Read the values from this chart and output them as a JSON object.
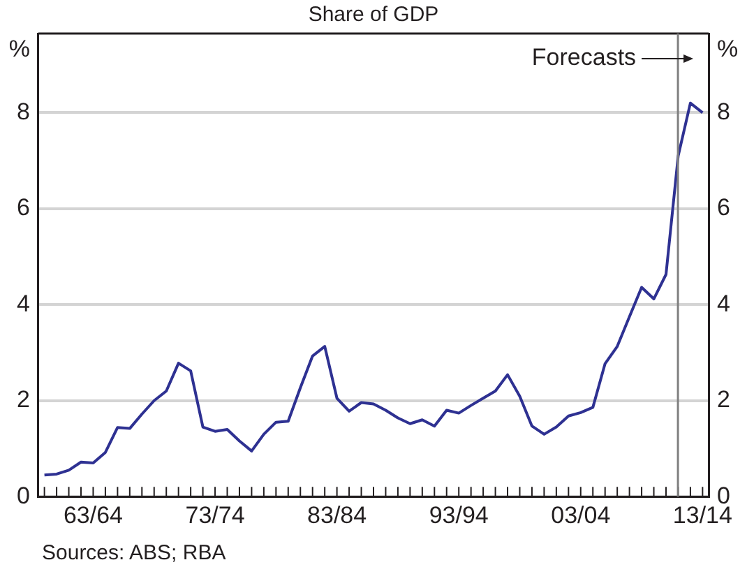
{
  "chart_data": {
    "type": "line",
    "title": "Share of GDP",
    "categories": [
      null,
      null,
      null,
      null,
      "63/64",
      null,
      null,
      null,
      null,
      null,
      null,
      null,
      null,
      null,
      "73/74",
      null,
      null,
      null,
      null,
      null,
      null,
      null,
      null,
      null,
      "83/84",
      null,
      null,
      null,
      null,
      null,
      null,
      null,
      null,
      null,
      "93/94",
      null,
      null,
      null,
      null,
      null,
      null,
      null,
      null,
      null,
      "03/04",
      null,
      null,
      null,
      null,
      null,
      null,
      null,
      null,
      null,
      "13/14"
    ],
    "series": [
      {
        "color": "#2e3192",
        "values": [
          0.45,
          0.47,
          0.55,
          0.72,
          0.7,
          0.92,
          1.44,
          1.42,
          1.72,
          2.0,
          2.2,
          2.78,
          2.62,
          1.45,
          1.36,
          1.4,
          1.16,
          0.95,
          1.3,
          1.55,
          1.57,
          2.27,
          2.93,
          3.13,
          2.05,
          1.78,
          1.96,
          1.93,
          1.8,
          1.64,
          1.52,
          1.6,
          1.47,
          1.8,
          1.74,
          1.9,
          2.05,
          2.2,
          2.54,
          2.09,
          1.47,
          1.3,
          1.45,
          1.68,
          1.75,
          1.86,
          2.77,
          3.13,
          3.75,
          4.36,
          4.12,
          4.63,
          7.1,
          8.2,
          8.0
        ]
      }
    ],
    "ylim": [
      0,
      9.65
    ],
    "yticks": [
      0,
      2,
      4,
      6,
      8
    ],
    "y2lim": [
      0,
      9.65
    ],
    "y2ticks": [
      0,
      2,
      4,
      6,
      8
    ],
    "ylabel": "%",
    "y2label": "%",
    "grid": "y",
    "legend": false,
    "marker": "none",
    "line_style": "solid",
    "annotations": [
      "Forecasts",
      "Sources: ABS; RBA"
    ]
  }
}
